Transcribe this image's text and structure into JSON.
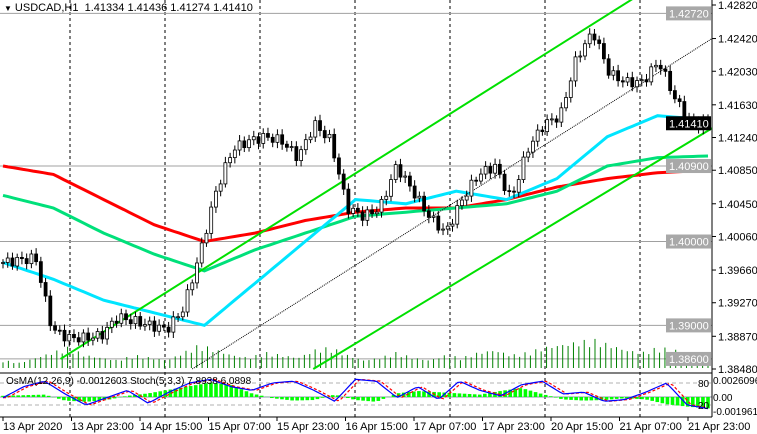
{
  "header": {
    "symbol": "USDCAD,H1",
    "open": "1.41334",
    "high": "1.41436",
    "low": "1.41274",
    "close": "1.41410"
  },
  "indicator": {
    "label": "OsMA(12,26,9) -0.0012603  Stoch(5,3,3) 7.8938 6.0898",
    "axis": {
      "top": "80",
      "top_value": "0.0026096",
      "zero": "0.00",
      "bottom": "20",
      "bottom_value": "-0.001961"
    }
  },
  "colors": {
    "up_channel": "#00e000",
    "ma_fast": "#00e5ff",
    "ma_mid": "#00e07a",
    "ma_slow": "#ff0000",
    "volume": "#008000",
    "osma": "#00ff00",
    "stoch_main": "#0000ff",
    "stoch_signal": "#ff0000",
    "level_line": "#a0a0a0"
  },
  "chart_data": {
    "type": "candlestick",
    "title": "USDCAD,H1",
    "ylim": [
      1.3848,
      1.4282
    ],
    "price_ticks": [
      "1.42820",
      "1.42420",
      "1.42030",
      "1.41630",
      "1.41240",
      "1.40850",
      "1.40450",
      "1.40060",
      "1.39660",
      "1.39270",
      "1.38870",
      "1.38480"
    ],
    "price_tick_values": [
      1.4282,
      1.4242,
      1.4203,
      1.4163,
      1.4124,
      1.4085,
      1.4045,
      1.4006,
      1.3966,
      1.3927,
      1.3887,
      1.3848
    ],
    "levels": [
      {
        "label": "1.42720",
        "value": 1.4272
      },
      {
        "label": "1.40900",
        "value": 1.409
      },
      {
        "label": "1.40000",
        "value": 1.4
      },
      {
        "label": "1.39000",
        "value": 1.39
      },
      {
        "label": "1.38600",
        "value": 1.386
      }
    ],
    "current_price": {
      "label": "1.41410",
      "value": 1.4141
    },
    "time_labels": [
      "13 Apr 2020",
      "13 Apr 23:00",
      "14 Apr 15:00",
      "15 Apr 07:00",
      "15 Apr 23:00",
      "16 Apr 15:00",
      "17 Apr 07:00",
      "17 Apr 23:00",
      "20 Apr 15:00",
      "21 Apr 07:00",
      "21 Apr 23:00"
    ],
    "closes": [
      1.3975,
      1.3978,
      1.398,
      1.3895,
      1.3885,
      1.3885,
      1.3888,
      1.391,
      1.3905,
      1.39,
      1.3895,
      1.392,
      1.3985,
      1.406,
      1.411,
      1.412,
      1.4125,
      1.412,
      1.41,
      1.414,
      1.412,
      1.404,
      1.403,
      1.404,
      1.409,
      1.406,
      1.403,
      1.401,
      1.405,
      1.408,
      1.409,
      1.405,
      1.411,
      1.414,
      1.415,
      1.422,
      1.425,
      1.42,
      1.419,
      1.419,
      1.4215,
      1.417,
      1.414,
      1.4141
    ],
    "ma_fast": [
      1.3975,
      1.3955,
      1.393,
      1.3915,
      1.39,
      1.395,
      1.4,
      1.405,
      1.4045,
      1.406,
      1.405,
      1.4075,
      1.4125,
      1.415,
      1.4145
    ],
    "ma_mid": [
      1.4055,
      1.404,
      1.401,
      1.3985,
      1.3965,
      1.399,
      1.401,
      1.403,
      1.4035,
      1.404,
      1.4045,
      1.406,
      1.409,
      1.41,
      1.4102
    ],
    "ma_slow": [
      1.409,
      1.408,
      1.405,
      1.402,
      1.4,
      1.401,
      1.4025,
      1.4035,
      1.404,
      1.404,
      1.405,
      1.4065,
      1.4075,
      1.4082,
      1.4085
    ],
    "channel_upper": [
      [
        1.386,
        0.085
      ],
      [
        1.429,
        0.89
      ]
    ],
    "channel_mid": [
      [
        1.3848,
        0.27
      ],
      [
        1.4242,
        1.0
      ]
    ],
    "channel_lower": [
      [
        1.3848,
        0.44
      ],
      [
        1.4135,
        1.0
      ]
    ],
    "volumes": [
      3,
      2,
      4,
      6,
      8,
      5,
      4,
      3,
      5,
      4,
      3,
      6,
      9,
      7,
      5,
      4,
      6,
      5,
      4,
      7,
      8,
      5,
      3,
      4,
      6,
      4,
      3,
      5,
      4,
      6,
      7,
      5,
      6,
      8,
      9,
      10,
      11,
      9,
      7,
      6,
      8,
      7,
      6,
      3
    ],
    "stoch": [
      40,
      70,
      85,
      50,
      20,
      40,
      60,
      25,
      55,
      80,
      90,
      70,
      60,
      80,
      85,
      60,
      30,
      90,
      85,
      40,
      70,
      35,
      85,
      60,
      45,
      75,
      85,
      50,
      55,
      30,
      35,
      55,
      80,
      20,
      10
    ],
    "osma": [
      0.2,
      0.3,
      0.4,
      -0.6,
      -0.8,
      -0.5,
      0.2,
      0.6,
      1.2,
      1.8,
      2.4,
      2.0,
      0.6,
      -0.2,
      -0.6,
      -0.5,
      0.4,
      -0.5,
      -0.8,
      0.6,
      1.0,
      0.8,
      0.6,
      0.4,
      1.0,
      1.5,
      0.5,
      -0.4,
      -0.6,
      -0.5,
      -0.2,
      -0.4,
      -1.2,
      -1.6,
      -1.9
    ]
  }
}
